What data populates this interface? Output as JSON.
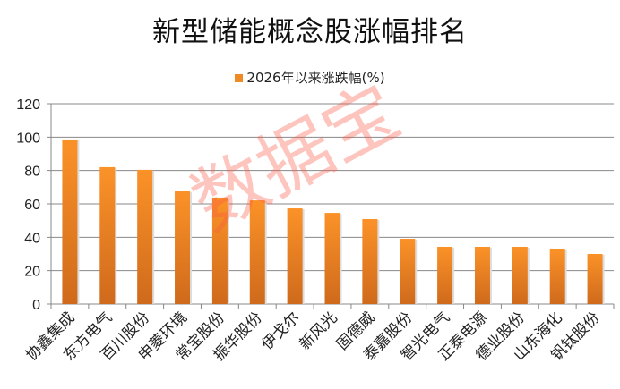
{
  "chart_data": {
    "type": "bar",
    "title": "新型储能概念股涨幅排名",
    "legend": "2026年以来涨跌幅(%)",
    "legend_position": "top",
    "categories": [
      "协鑫集成",
      "东方电气",
      "百川股份",
      "申菱环境",
      "常宝股份",
      "振华股份",
      "伊戈尔",
      "新风光",
      "固德威",
      "泰嘉股份",
      "智光电气",
      "正泰电源",
      "德业股份",
      "山东海化",
      "钒钛股份"
    ],
    "values": [
      98.6,
      82.0,
      80.4,
      67.5,
      63.8,
      62.1,
      57.3,
      54.6,
      50.9,
      39.1,
      34.3,
      34.3,
      34.3,
      32.7,
      30.0
    ],
    "ylim": [
      0,
      120
    ],
    "yticks": [
      "0",
      "20",
      "40",
      "60",
      "80",
      "100",
      "120"
    ],
    "grid": true,
    "bar_color": "#f08a24",
    "watermark": "数据宝"
  }
}
